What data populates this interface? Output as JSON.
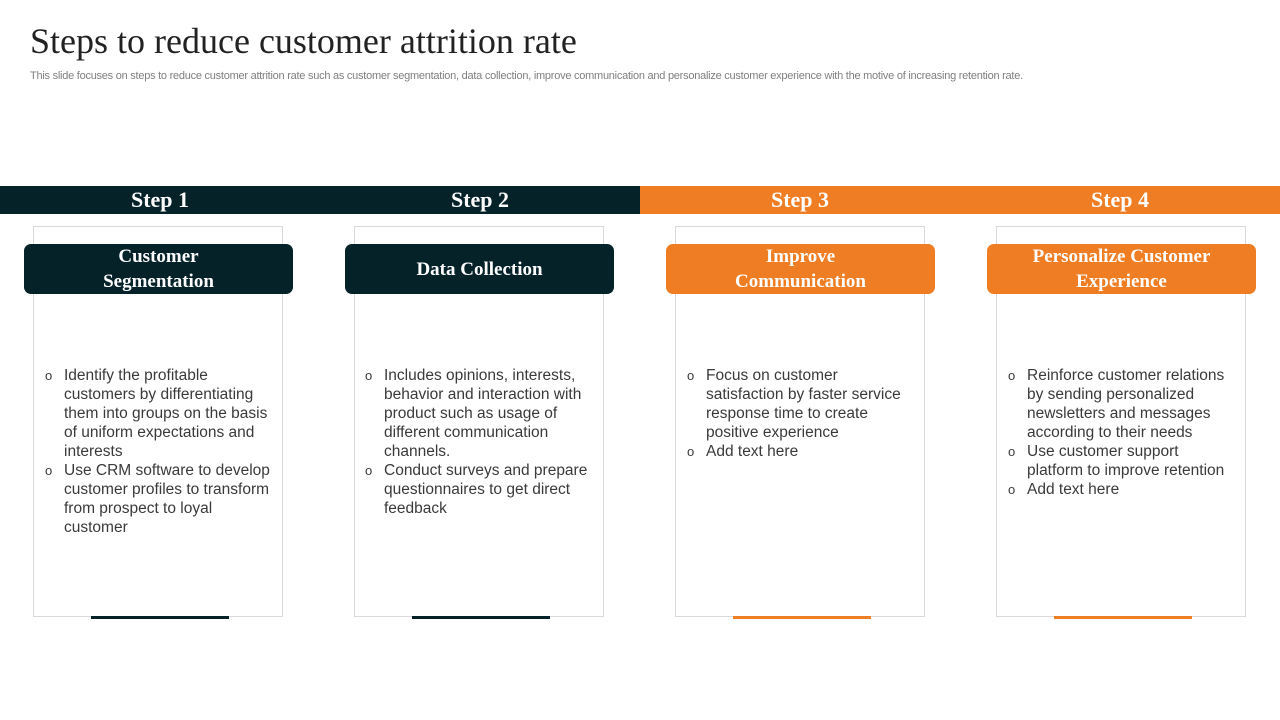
{
  "title": "Steps to reduce customer attrition rate",
  "subtitle": "This slide focuses on steps to reduce customer attrition rate such as customer segmentation, data collection, improve communication and personalize customer experience with the motive of increasing retention rate.",
  "colors": {
    "dark": "#052229",
    "orange": "#ef7d23",
    "card_border": "#d9d9d9",
    "text": "#3a3a3a",
    "subtitle": "#7f7f7f"
  },
  "bullet_marker": "o",
  "steps": [
    {
      "step_label": "Step 1",
      "heading": "Customer Segmentation",
      "bullets": [
        "Identify the profitable customers by differentiating them into groups on the basis of uniform expectations and interests",
        "Use CRM software to develop customer profiles to transform from prospect to loyal customer"
      ]
    },
    {
      "step_label": "Step 2",
      "heading": "Data Collection",
      "bullets": [
        "Includes opinions, interests, behavior and interaction with product such as usage of different communication channels.",
        "Conduct surveys and prepare questionnaires to get direct feedback"
      ]
    },
    {
      "step_label": "Step 3",
      "heading": "Improve Communication",
      "bullets": [
        "Focus on customer satisfaction by faster service response time to create positive experience",
        "Add text here"
      ]
    },
    {
      "step_label": "Step 4",
      "heading": "Personalize Customer Experience",
      "bullets": [
        "Reinforce customer relations by sending personalized newsletters and messages according to their needs",
        "Use customer support platform to improve retention",
        "Add text here"
      ]
    }
  ]
}
